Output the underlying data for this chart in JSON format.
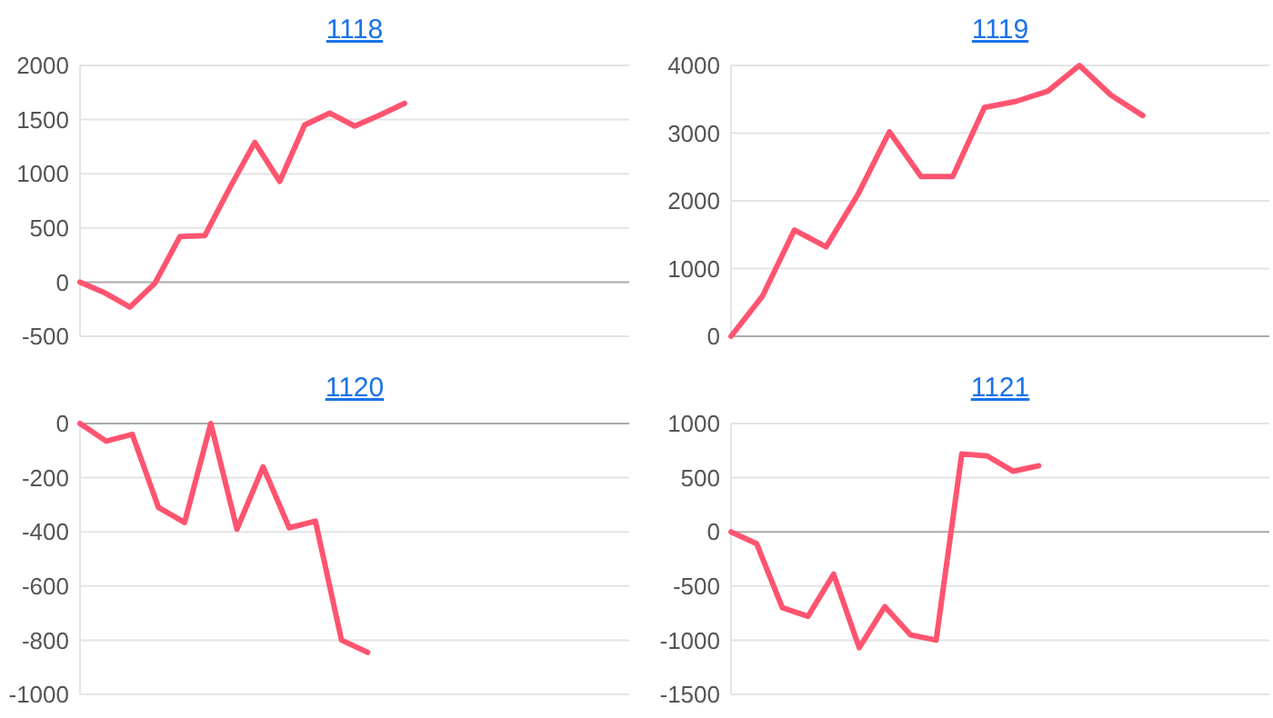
{
  "chart_data": [
    {
      "type": "line",
      "title": "1118",
      "categories": [
        null,
        null,
        null,
        null,
        null,
        null,
        null,
        null,
        null,
        null,
        null,
        null,
        null,
        null,
        null,
        null,
        null,
        null,
        null,
        null,
        null,
        null,
        null
      ],
      "series": [
        {
          "color": "#ff5470",
          "values": [
            0,
            -100,
            -230,
            -10,
            420,
            430,
            870,
            1290,
            930,
            1450,
            1560,
            1440,
            1540,
            1650,
            null,
            null,
            null,
            null,
            null,
            null,
            null,
            null,
            null
          ]
        }
      ],
      "ylim": [
        -500,
        2000
      ],
      "yticks": [
        -500,
        0,
        500,
        1000,
        1500,
        2000
      ],
      "grid": "y",
      "tick_labels": "y",
      "marker": "none",
      "line_style": "solid"
    },
    {
      "type": "line",
      "title": "1119",
      "categories": [
        null,
        null,
        null,
        null,
        null,
        null,
        null,
        null,
        null,
        null,
        null,
        null,
        null,
        null,
        null,
        null,
        null,
        null
      ],
      "series": [
        {
          "color": "#ff5470",
          "values": [
            0,
            600,
            1570,
            1320,
            2090,
            3020,
            2360,
            2360,
            3380,
            3470,
            3620,
            4000,
            3560,
            3260,
            null,
            null,
            null,
            null
          ]
        }
      ],
      "ylim": [
        0,
        4000
      ],
      "yticks": [
        0,
        1000,
        2000,
        3000,
        4000
      ],
      "grid": "y",
      "tick_labels": "y",
      "marker": "none",
      "line_style": "solid"
    },
    {
      "type": "line",
      "title": "1120",
      "categories": [
        null,
        null,
        null,
        null,
        null,
        null,
        null,
        null,
        null,
        null,
        null,
        null,
        null,
        null,
        null,
        null,
        null,
        null,
        null,
        null,
        null,
        null
      ],
      "series": [
        {
          "color": "#ff5470",
          "values": [
            0,
            -65,
            -40,
            -310,
            -365,
            0,
            -390,
            -160,
            -385,
            -360,
            -800,
            -845,
            null,
            null,
            null,
            null,
            null,
            null,
            null,
            null,
            null,
            null
          ]
        }
      ],
      "ylim": [
        -1000,
        0
      ],
      "yticks": [
        -1000,
        -800,
        -600,
        -400,
        -200,
        0
      ],
      "grid": "y",
      "tick_labels": "y",
      "marker": "none",
      "line_style": "solid"
    },
    {
      "type": "line",
      "title": "1121",
      "categories": [
        null,
        null,
        null,
        null,
        null,
        null,
        null,
        null,
        null,
        null,
        null,
        null,
        null,
        null,
        null,
        null,
        null,
        null,
        null,
        null,
        null,
        null
      ],
      "series": [
        {
          "color": "#ff5470",
          "values": [
            0,
            -110,
            -700,
            -780,
            -390,
            -1070,
            -690,
            -950,
            -1000,
            720,
            700,
            560,
            610,
            null,
            null,
            null,
            null,
            null,
            null,
            null,
            null,
            null
          ]
        }
      ],
      "ylim": [
        -1500,
        1000
      ],
      "yticks": [
        -1500,
        -1000,
        -500,
        0,
        500,
        1000
      ],
      "grid": "y",
      "tick_labels": "y",
      "marker": "none",
      "line_style": "solid"
    }
  ]
}
